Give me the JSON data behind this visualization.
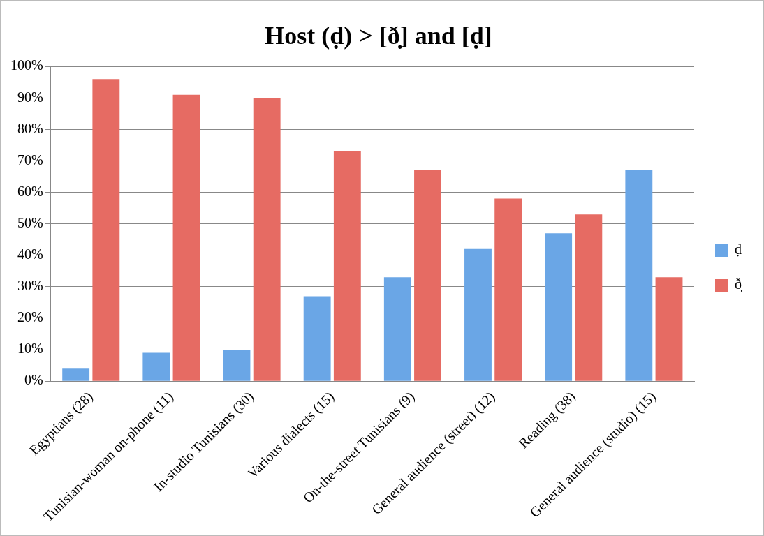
{
  "chart_data": {
    "type": "bar",
    "title": "Host (ḍ) > [ð̣] and [ḍ]",
    "categories": [
      "Egyptians (28)",
      "Tunisian-woman on-phone (11)",
      "In-studio Tunisians (30)",
      "Various dialects (15)",
      "On-the-street Tunisians (9)",
      "General audience (street) (12)",
      "Reading (38)",
      "General audience (studio) (15)"
    ],
    "series": [
      {
        "name": "ḍ",
        "color": "#6aa6e6",
        "values": [
          4,
          9,
          10,
          27,
          33,
          42,
          47,
          67
        ]
      },
      {
        "name": "ð̣",
        "color": "#e66b63",
        "values": [
          96,
          91,
          90,
          73,
          67,
          58,
          53,
          33
        ]
      }
    ],
    "ylim": [
      0,
      100
    ],
    "yticks": [
      {
        "value": 0,
        "label": "0%"
      },
      {
        "value": 10,
        "label": "10%"
      },
      {
        "value": 20,
        "label": "20%"
      },
      {
        "value": 30,
        "label": "30%"
      },
      {
        "value": 40,
        "label": "40%"
      },
      {
        "value": 50,
        "label": "50%"
      },
      {
        "value": 60,
        "label": "60%"
      },
      {
        "value": 70,
        "label": "70%"
      },
      {
        "value": 80,
        "label": "80%"
      },
      {
        "value": 90,
        "label": "90%"
      },
      {
        "value": 100,
        "label": "100%"
      }
    ],
    "grid": "y",
    "legend": "right"
  }
}
